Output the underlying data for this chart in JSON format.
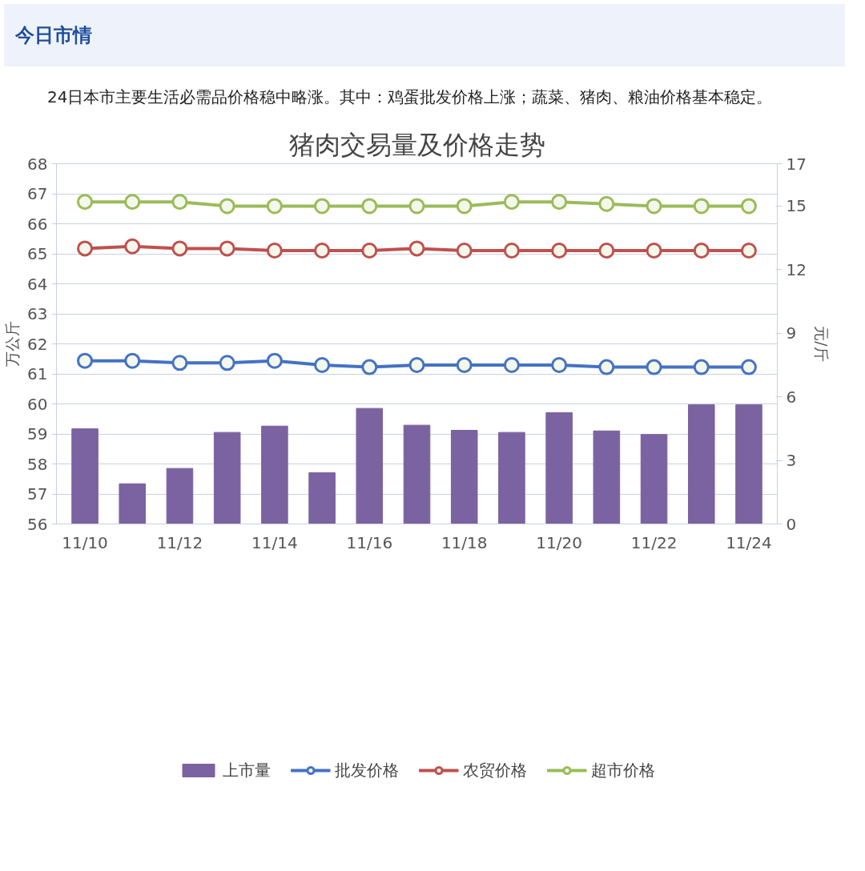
{
  "chart_data": {
    "type": "bar",
    "title": "猪肉交易量及价格走势",
    "annotations": [
      "今日市情",
      "24日本市主要生活必需品价格稳中略涨。其中：鸡蛋批发价格上涨；蔬菜、猪肉、粮油价格基本稳定。"
    ],
    "ylabel": "万公斤",
    "y2label": "元/斤",
    "categories": [
      "11/10",
      null,
      "11/12",
      null,
      "11/14",
      null,
      "11/16",
      null,
      "11/18",
      null,
      "11/20",
      null,
      "11/22",
      null,
      "11/24"
    ],
    "series": [
      {
        "name": "上市量",
        "color": "#7b62a0",
        "values": [
          59.17,
          57.34,
          57.85,
          59.05,
          59.26,
          57.71,
          59.85,
          59.29,
          59.12,
          59.05,
          59.71,
          59.1,
          58.98,
          59.97,
          59.97
        ]
      },
      {
        "name": "批发价格",
        "type": "line",
        "axis": "y2",
        "color": "#4472c4",
        "values": [
          7.7,
          7.7,
          7.6,
          7.6,
          7.7,
          7.5,
          7.4,
          7.5,
          7.5,
          7.5,
          7.5,
          7.4,
          7.4,
          7.4,
          7.4
        ]
      },
      {
        "name": "农贸价格",
        "type": "line",
        "axis": "y2",
        "color": "#c0504d",
        "values": [
          13.0,
          13.1,
          13.0,
          13.0,
          12.9,
          12.9,
          12.9,
          13.0,
          12.9,
          12.9,
          12.9,
          12.9,
          12.9,
          12.9,
          12.9
        ]
      },
      {
        "name": "超市价格",
        "type": "line",
        "axis": "y2",
        "color": "#9bbb59",
        "values": [
          15.2,
          15.2,
          15.2,
          15.0,
          15.0,
          15.0,
          15.0,
          15.0,
          15.0,
          15.2,
          15.2,
          15.1,
          15.0,
          15.0,
          15.0
        ]
      }
    ],
    "ylim": [
      56,
      68
    ],
    "yticks": [
      56,
      57,
      58,
      59,
      60,
      61,
      62,
      63,
      64,
      65,
      66,
      67,
      68
    ],
    "y2lim": [
      0,
      17
    ],
    "y2ticks": [
      0,
      3,
      6,
      9,
      12,
      15,
      17
    ],
    "grid": "y",
    "legend": "bottom",
    "marker": "circle",
    "line_style": "solid"
  }
}
